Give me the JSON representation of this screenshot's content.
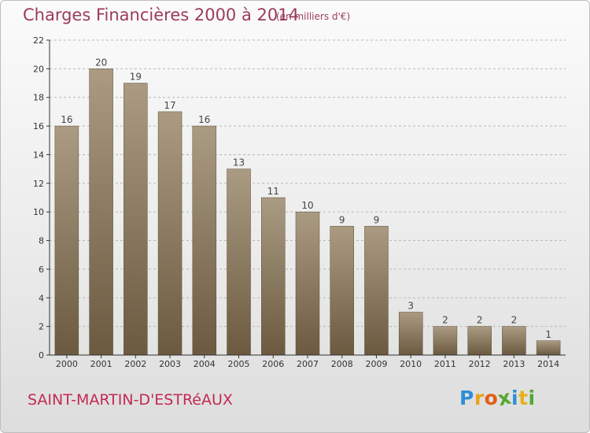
{
  "header": {
    "title": "Charges Financières 2000 à 2014",
    "unit": "(en milliers d'€)"
  },
  "footer": {
    "commune": "SAINT-MARTIN-D'ESTRéAUX"
  },
  "logo": {
    "text": "Proxiti",
    "letters": [
      "P",
      "r",
      "o",
      "x",
      "i",
      "t",
      "i"
    ],
    "colors": [
      "#2f8fd6",
      "#e8a21c",
      "#e25d16",
      "#55a72e",
      "#2f8fd6",
      "#e5b21a",
      "#55a72e"
    ]
  },
  "colors": {
    "bar_top": "#aa9b82",
    "bar_bottom": "#6b5a40",
    "axis": "#333333",
    "grid": "#b8b8b8"
  },
  "chart_data": {
    "type": "bar",
    "title": "Charges Financières 2000 à 2014",
    "subtitle": "(en milliers d'€)",
    "categories": [
      "2000",
      "2001",
      "2002",
      "2003",
      "2004",
      "2005",
      "2006",
      "2007",
      "2008",
      "2009",
      "2010",
      "2011",
      "2012",
      "2013",
      "2014"
    ],
    "values": [
      16,
      20,
      19,
      17,
      16,
      13,
      11,
      10,
      9,
      9,
      3,
      2,
      2,
      2,
      1
    ],
    "ylim": [
      0,
      22
    ],
    "yticks": [
      0,
      2,
      4,
      6,
      8,
      10,
      12,
      14,
      16,
      18,
      20,
      22
    ],
    "grid": "horizontal dashed",
    "legend": "none"
  }
}
